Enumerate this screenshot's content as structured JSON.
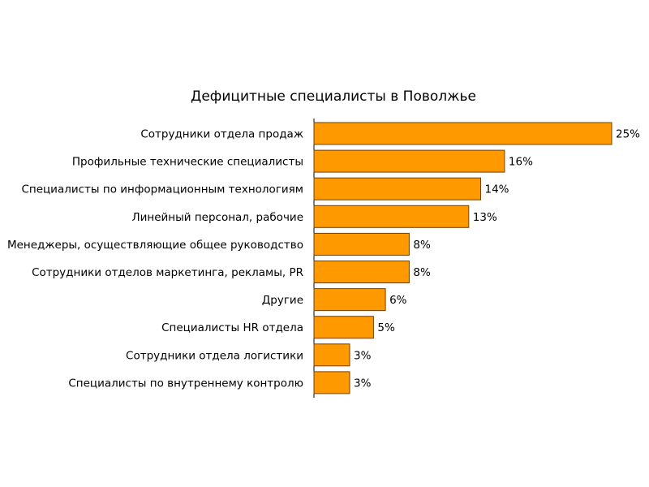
{
  "chart_data": {
    "type": "bar",
    "orientation": "horizontal",
    "title": "Дефицитные специалисты в Поволжье",
    "categories": [
      "Сотрудники отдела продаж",
      "Профильные технические специалисты",
      "Специалисты по информационным технологиям",
      "Линейный персонал, рабочие",
      "Менеджеры, осуществляющие общее руководство",
      "Сотрудники отделов маркетинга, рекламы, PR",
      "Другие",
      "Специалисты HR отдела",
      "Сотрудники отдела логистики",
      "Специалисты по внутреннему контролю"
    ],
    "values": [
      25,
      16,
      14,
      13,
      8,
      8,
      6,
      5,
      3,
      3
    ],
    "value_labels": [
      "25%",
      "16%",
      "14%",
      "13%",
      "8%",
      "8%",
      "6%",
      "5%",
      "3%",
      "3%"
    ],
    "unit": "%",
    "xlim": [
      0,
      25
    ],
    "grid": false,
    "legend": "none",
    "bar_color": "#ff9900",
    "bar_border_color": "#7a3d00"
  }
}
